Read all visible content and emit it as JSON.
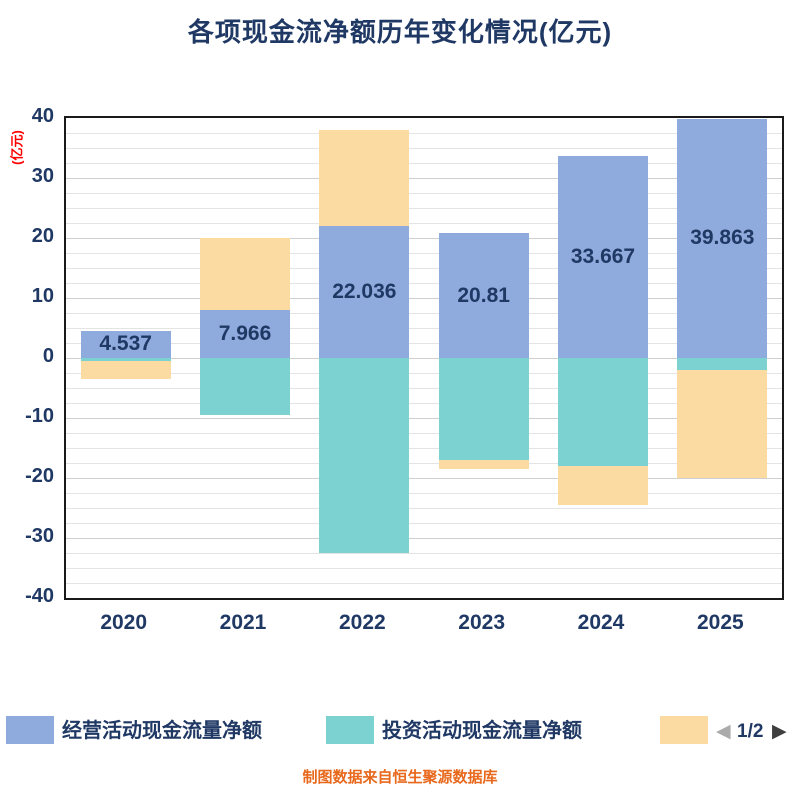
{
  "title": "各项现金流净额历年变化情况(亿元)",
  "y_axis_unit": "(亿元)",
  "source_caption": "制图数据来自恒生聚源数据库",
  "pagination": {
    "label": "1/2",
    "prev_icon": "◀",
    "next_icon": "▶"
  },
  "colors": {
    "operating": "#8FAADC",
    "investing": "#7CD1D1",
    "financing": "#FBDBA2",
    "title_text": "#1F3864",
    "axis_text": "#1F3864",
    "caption_text": "#E8681C",
    "unit_label_text": "#FF0000"
  },
  "legend": {
    "items": [
      {
        "label": "经营活动现金流量净额",
        "color_key": "operating"
      },
      {
        "label": "投资活动现金流量净额",
        "color_key": "investing"
      },
      {
        "label": "",
        "color_key": "financing"
      }
    ]
  },
  "chart_data": {
    "type": "bar",
    "stacked": true,
    "title": "各项现金流净额历年变化情况(亿元)",
    "ylabel": "(亿元)",
    "categories": [
      "2020",
      "2021",
      "2022",
      "2023",
      "2024",
      "2025"
    ],
    "series": [
      {
        "name": "经营活动现金流量净额",
        "color_key": "operating",
        "values": [
          4.537,
          7.966,
          22.036,
          20.81,
          33.667,
          39.863
        ]
      },
      {
        "name": "投资活动现金流量净额",
        "color_key": "investing",
        "values": [
          -0.5,
          -9.5,
          -32.5,
          -17,
          -18,
          -2
        ]
      },
      {
        "name": "",
        "color_key": "financing",
        "values": [
          -3,
          12,
          16,
          -1.5,
          -6.5,
          -18
        ]
      }
    ],
    "data_labels": [
      "4.537",
      "7.966",
      "22.036",
      "20.81",
      "33.667",
      "39.863"
    ],
    "ylim": [
      -40,
      40
    ],
    "y_major_step": 10,
    "y_minor_step": 2.5,
    "grid": true,
    "legend_position": "bottom"
  }
}
